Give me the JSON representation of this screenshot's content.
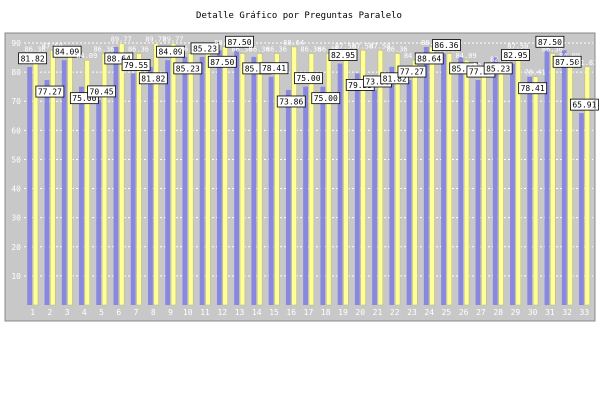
{
  "chart_data": {
    "type": "bar",
    "title": "Detalle Gráfico por Preguntas Paralelo",
    "xlabel": "",
    "ylabel": "",
    "ylim": [
      0,
      90
    ],
    "yticks": [
      10,
      20,
      30,
      40,
      50,
      60,
      70,
      80,
      90
    ],
    "grid": true,
    "legend": "none",
    "colors": {
      "plot_bg": "#c8c8c8",
      "grid": "#ffffff",
      "series_a": "#8888e0",
      "series_b": "#ffff99",
      "label_box": "#ffffff",
      "label_border": "#000000"
    },
    "categories": [
      "1",
      "2",
      "3",
      "4",
      "5",
      "6",
      "7",
      "8",
      "9",
      "10",
      "11",
      "12",
      "13",
      "14",
      "15",
      "16",
      "17",
      "18",
      "19",
      "20",
      "21",
      "22",
      "23",
      "24",
      "25",
      "26",
      "27",
      "28",
      "29",
      "30",
      "31",
      "32",
      "33"
    ],
    "series": [
      {
        "values": [
          81.82,
          77.27,
          84.09,
          75.0,
          70.45,
          88.64,
          79.55,
          81.82,
          84.09,
          85.23,
          85.23,
          87.5,
          87.5,
          85.23,
          78.41,
          73.86,
          75.0,
          75.0,
          82.95,
          79.55,
          73.86,
          81.82,
          77.27,
          88.64,
          86.36,
          85.23,
          77.27,
          85.23,
          82.95,
          78.41,
          87.5,
          87.5,
          65.91
        ],
        "labels": [
          "81.82",
          "77.27",
          "84.09",
          "75.00",
          "70.45",
          "88.64",
          "79.55",
          "81.82",
          "84.09",
          "85.23",
          "85.23",
          "87.50",
          "87.50",
          "85.23",
          "78.41",
          "73.86",
          "75.00",
          "75.00",
          "82.95",
          "79.55",
          "73.86",
          "81.82",
          "77.27",
          "88.64",
          "86.36",
          "85.23",
          "77.27",
          "85.23",
          "82.95",
          "78.41",
          "87.50",
          "87.50",
          "65.91"
        ]
      },
      {
        "values": [
          86.36,
          87.5,
          85.23,
          84.09,
          86.36,
          89.77,
          86.36,
          89.77,
          89.77,
          86.36,
          87.5,
          88.64,
          86.36,
          86.36,
          86.36,
          88.64,
          86.36,
          86.36,
          87.5,
          87.5,
          87.5,
          86.36,
          84.09,
          88.64,
          86.36,
          84.09,
          80.68,
          82.95,
          87.5,
          78.41,
          86.36,
          84.09,
          81.82
        ],
        "labels": [
          "86.36",
          "87.50",
          "85.23",
          "84.09",
          "86.36",
          "89.77",
          "86.36",
          "89.77",
          "89.77",
          "86.36",
          "87.50",
          "88.64",
          "86.36",
          "86.36",
          "86.36",
          "88.64",
          "86.36",
          "86.36",
          "87.50",
          "87.50",
          "87.50",
          "86.36",
          "84.09",
          "88.64",
          "86.36",
          "84.09",
          "80.68",
          "82.95",
          "87.50",
          "78.41",
          "86.36",
          "84.09",
          "81.82"
        ]
      }
    ]
  }
}
